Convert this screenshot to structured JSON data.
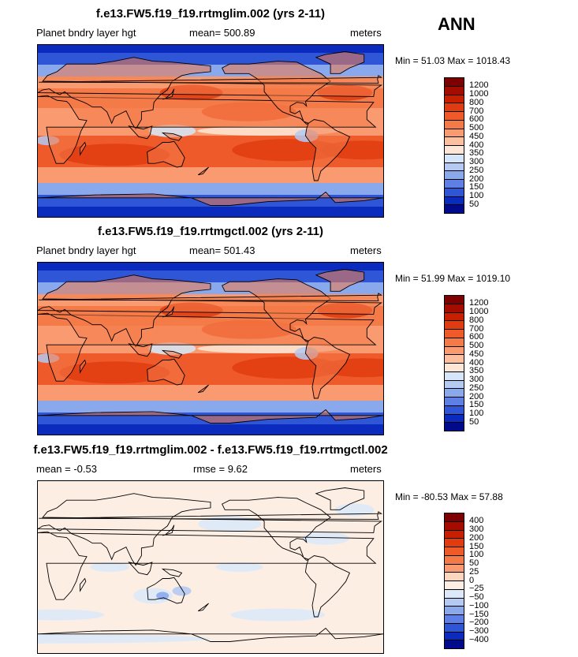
{
  "season": "ANN",
  "panels": [
    {
      "title": "f.e13.FW5.f19_f19.rrtmglim.002 (yrs 2-11)",
      "left_label": "Planet bndry layer hgt",
      "mid_label": "mean= 500.89",
      "right_label": "meters",
      "minmax": "Min =  51.03 Max = 1018.43",
      "colorbar": {
        "ticks": [
          "1200",
          "1000",
          "800",
          "700",
          "600",
          "500",
          "450",
          "400",
          "350",
          "300",
          "250",
          "200",
          "150",
          "100",
          "50"
        ],
        "colors": [
          "#7f0000",
          "#a40c00",
          "#c81f00",
          "#e03c10",
          "#ee5a2a",
          "#f47a48",
          "#f99a70",
          "#fcc0a0",
          "#fde6d6",
          "#d6e6f8",
          "#b4caf2",
          "#8aa8ec",
          "#5e80e4",
          "#2f56d6",
          "#0a2bbd",
          "#000a8a"
        ]
      },
      "style": "abs"
    },
    {
      "title": "f.e13.FW5.f19_f19.rrtmgctl.002 (yrs 2-11)",
      "left_label": "Planet bndry layer hgt",
      "mid_label": "mean= 501.43",
      "right_label": "meters",
      "minmax": "Min =  51.99 Max = 1019.10",
      "colorbar": {
        "ticks": [
          "1200",
          "1000",
          "800",
          "700",
          "600",
          "500",
          "450",
          "400",
          "350",
          "300",
          "250",
          "200",
          "150",
          "100",
          "50"
        ],
        "colors": [
          "#7f0000",
          "#a40c00",
          "#c81f00",
          "#e03c10",
          "#ee5a2a",
          "#f47a48",
          "#f99a70",
          "#fcc0a0",
          "#fde6d6",
          "#d6e6f8",
          "#b4caf2",
          "#8aa8ec",
          "#5e80e4",
          "#2f56d6",
          "#0a2bbd",
          "#000a8a"
        ]
      },
      "style": "abs"
    },
    {
      "title": "f.e13.FW5.f19_f19.rrtmglim.002 - f.e13.FW5.f19_f19.rrtmgctl.002",
      "left_label": "mean =   -0.53",
      "mid_label": "rmse =     9.62",
      "right_label": "meters",
      "minmax": "Min = -80.53 Max =  57.88",
      "colorbar": {
        "ticks": [
          "400",
          "300",
          "200",
          "150",
          "100",
          "50",
          "25",
          "0",
          "−25",
          "−50",
          "−100",
          "−150",
          "−200",
          "−300",
          "−400"
        ],
        "colors": [
          "#7f0000",
          "#a40c00",
          "#c81f00",
          "#e03c10",
          "#ee5a2a",
          "#f47a48",
          "#f99a70",
          "#fcd6bf",
          "#fdeee4",
          "#dde9f8",
          "#b4caf2",
          "#8aa8ec",
          "#5e80e4",
          "#2f56d6",
          "#0a2bbd",
          "#000a8a"
        ]
      },
      "style": "diff"
    }
  ]
}
